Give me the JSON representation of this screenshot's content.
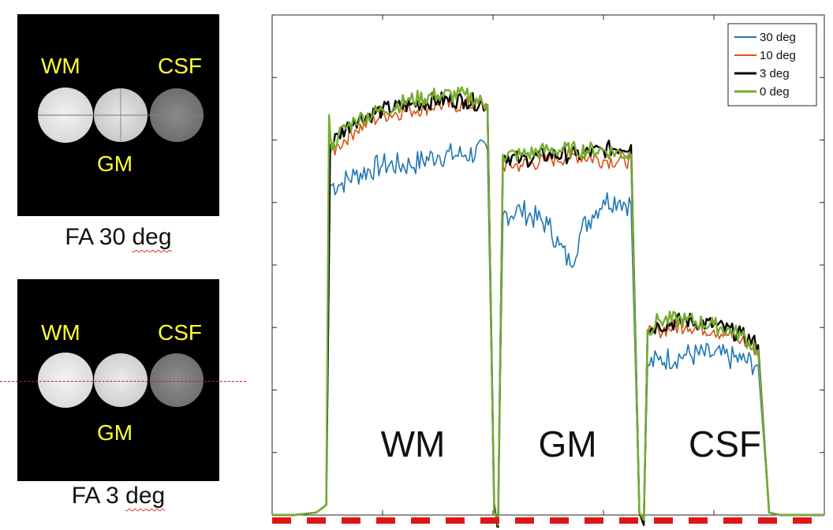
{
  "panels": [
    {
      "labels": {
        "wm": "WM",
        "csf": "CSF",
        "gm": "GM"
      },
      "caption_prefix": "FA 30 ",
      "caption_suffix": "deg"
    },
    {
      "labels": {
        "wm": "WM",
        "csf": "CSF",
        "gm": "GM"
      },
      "caption_prefix": "FA 3 ",
      "caption_suffix": "deg"
    }
  ],
  "colors": {
    "blue": "#1f77b4",
    "orange": "#d95319",
    "black": "#000000",
    "green": "#77ac30",
    "marker": "#e01515"
  },
  "chart_data": {
    "type": "line",
    "grid": false,
    "legend": {
      "position": "top-right"
    },
    "xlim": [
      0,
      100
    ],
    "ylim": [
      0,
      100
    ],
    "region_labels": [
      "WM",
      "GM",
      "CSF"
    ],
    "series": [
      {
        "name": "30 deg",
        "color": "#1f77b4",
        "x": [
          0,
          4,
          8,
          9.8,
          10.5,
          12,
          15,
          20,
          25,
          30,
          35,
          39,
          40.2,
          40.9,
          41.8,
          45,
          50,
          52,
          54,
          56,
          58,
          60,
          63,
          65,
          66.5,
          67.3,
          68,
          70,
          75,
          80,
          85,
          88,
          90,
          92,
          95,
          100
        ],
        "y": [
          0,
          0,
          0.5,
          2,
          66,
          66,
          68,
          70,
          70,
          72,
          72,
          73,
          0.5,
          -0.5,
          60,
          61,
          58,
          54,
          50,
          57,
          60,
          63,
          63,
          62,
          0.5,
          -0.5,
          30,
          31,
          32,
          32,
          31,
          30,
          0.5,
          0,
          0,
          0
        ]
      },
      {
        "name": "10 deg",
        "color": "#d95319",
        "x": [
          0,
          4,
          8,
          9.8,
          10.5,
          12,
          15,
          20,
          25,
          30,
          35,
          39,
          40.2,
          40.9,
          41.8,
          45,
          50,
          55,
          60,
          65,
          66.5,
          67.3,
          68,
          70,
          75,
          80,
          85,
          88,
          90,
          92,
          95,
          100
        ],
        "y": [
          0,
          0,
          0.5,
          2,
          72,
          74,
          77,
          80,
          81,
          82,
          82,
          82,
          3,
          -4,
          70,
          70,
          71,
          72,
          71,
          71,
          0.5,
          -0.5,
          36,
          37,
          38,
          37,
          35,
          33,
          0.5,
          0,
          0,
          0
        ]
      },
      {
        "name": "3 deg",
        "color": "#000000",
        "x": [
          0,
          4,
          8,
          9.8,
          10.5,
          12,
          15,
          20,
          25,
          30,
          35,
          39,
          40.2,
          40.9,
          41.8,
          45,
          50,
          55,
          60,
          65,
          66.5,
          67.3,
          68,
          70,
          75,
          80,
          85,
          88,
          90,
          92,
          95,
          100
        ],
        "y": [
          0,
          0,
          0.5,
          2,
          74,
          76,
          79,
          81,
          82,
          83,
          83,
          82,
          2,
          -3,
          72,
          71,
          72,
          72,
          73,
          74,
          0.5,
          -2,
          37,
          38,
          39,
          38,
          36,
          34,
          0.5,
          0,
          0,
          0
        ]
      },
      {
        "name": "0 deg",
        "color": "#77ac30",
        "x": [
          0,
          4,
          8,
          9.8,
          10.3,
          10.8,
          12,
          15,
          20,
          25,
          30,
          35,
          39,
          40.2,
          40.9,
          41.8,
          45,
          50,
          55,
          60,
          65,
          66.5,
          67.3,
          68,
          70,
          75,
          80,
          85,
          88,
          90,
          92,
          95,
          100
        ],
        "y": [
          0,
          0,
          0.5,
          2,
          80,
          73,
          76,
          79,
          81,
          83,
          84,
          84,
          82,
          1,
          -2,
          72,
          72,
          73,
          73,
          73,
          72,
          0.5,
          -1,
          37,
          39,
          39,
          38,
          36,
          33,
          0.5,
          0,
          0,
          0
        ]
      }
    ]
  }
}
